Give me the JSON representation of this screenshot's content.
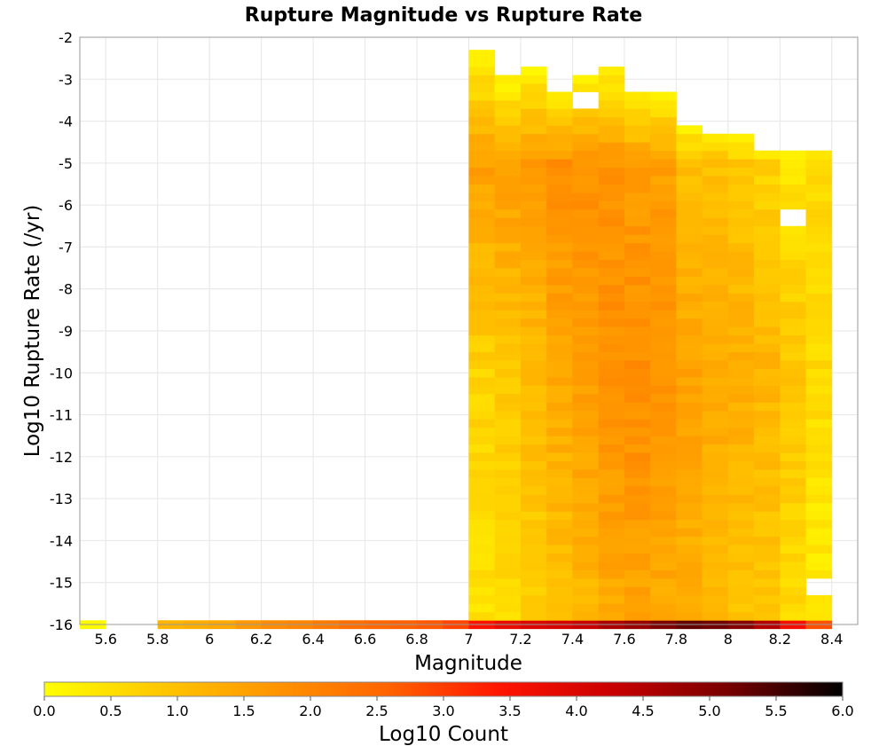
{
  "chart_data": {
    "type": "heatmap",
    "title": "Rupture Magnitude vs Rupture Rate",
    "xlabel": "Magnitude",
    "ylabel": "Log10 Rupture Rate (/yr)",
    "xlim": [
      5.5,
      8.5
    ],
    "ylim": [
      -16,
      -2
    ],
    "x_ticks": [
      "5.6",
      "5.8",
      "6",
      "6.2",
      "6.4",
      "6.6",
      "6.8",
      "7",
      "7.2",
      "7.4",
      "7.6",
      "7.8",
      "8",
      "8.2",
      "8.4"
    ],
    "y_ticks": [
      "-2",
      "-3",
      "-4",
      "-5",
      "-6",
      "-7",
      "-8",
      "-9",
      "-10",
      "-11",
      "-12",
      "-13",
      "-14",
      "-15",
      "-16"
    ],
    "colorbar": {
      "label": "Log10 Count",
      "range": [
        0,
        6
      ],
      "ticks": [
        "0.0",
        "0.5",
        "1.0",
        "1.5",
        "2.0",
        "2.5",
        "3.0",
        "3.5",
        "4.0",
        "4.5",
        "5.0",
        "5.5",
        "6.0"
      ],
      "colors": [
        "#ffff00",
        "#ffc800",
        "#ff9600",
        "#ff6400",
        "#ff1400",
        "#c80000",
        "#780000",
        "#000000"
      ]
    },
    "bin_width": {
      "magnitude": 0.1,
      "log_rate": 0.2
    },
    "grid": true,
    "bottom_row": {
      "log_rate": -16,
      "magnitudes": [
        5.55,
        5.85,
        5.95,
        6.05,
        6.15,
        6.25,
        6.35,
        6.45,
        6.55,
        6.65,
        6.75,
        6.85,
        6.95,
        7.05,
        7.15,
        7.25,
        7.35,
        7.45,
        7.55,
        7.65,
        7.75,
        7.85,
        7.95,
        8.05,
        8.15,
        8.25,
        8.35
      ],
      "log_counts": [
        0.1,
        1.2,
        1.3,
        1.4,
        1.7,
        1.9,
        2.0,
        2.2,
        2.4,
        2.5,
        2.6,
        2.7,
        2.9,
        3.5,
        3.8,
        4.0,
        4.1,
        4.3,
        4.6,
        4.8,
        5.1,
        5.3,
        5.2,
        5.0,
        4.5,
        3.6,
        2.8
      ]
    },
    "column_tops": {
      "magnitudes": [
        7.05,
        7.15,
        7.25,
        7.35,
        7.45,
        7.55,
        7.65,
        7.75,
        7.85,
        7.95,
        8.05,
        8.15,
        8.25,
        8.35
      ],
      "top_log_rate": [
        -2.4,
        -3.0,
        -2.7,
        -3.3,
        -3.0,
        -2.7,
        -3.3,
        -3.3,
        -4.1,
        -4.4,
        -4.4,
        -4.7,
        -4.7,
        -4.7
      ]
    },
    "empty_cells": [
      {
        "magnitude": 7.45,
        "log_rate": -3.5
      },
      {
        "magnitude": 8.25,
        "log_rate": -6.3
      },
      {
        "magnitude": 8.35,
        "log_rate": -15.1
      }
    ],
    "column_profiles": {
      "magnitudes": [
        7.05,
        7.15,
        7.25,
        7.35,
        7.45,
        7.55,
        7.65,
        7.75,
        7.85,
        7.95,
        8.05,
        8.15,
        8.25,
        8.35
      ],
      "log_count_at_rate_-5": [
        1.55,
        1.6,
        1.6,
        1.8,
        1.8,
        1.75,
        1.6,
        1.55,
        1.0,
        1.0,
        0.9,
        0.7,
        0.4,
        0.6
      ],
      "log_count_at_rate_-10": [
        0.7,
        0.9,
        1.1,
        1.4,
        1.6,
        1.8,
        1.9,
        1.8,
        1.5,
        1.4,
        1.3,
        1.2,
        0.9,
        0.6
      ],
      "log_count_at_rate_-15": [
        0.5,
        0.6,
        0.8,
        1.0,
        1.2,
        1.4,
        1.5,
        1.4,
        1.3,
        1.1,
        1.0,
        0.9,
        0.6,
        0.3
      ]
    }
  }
}
